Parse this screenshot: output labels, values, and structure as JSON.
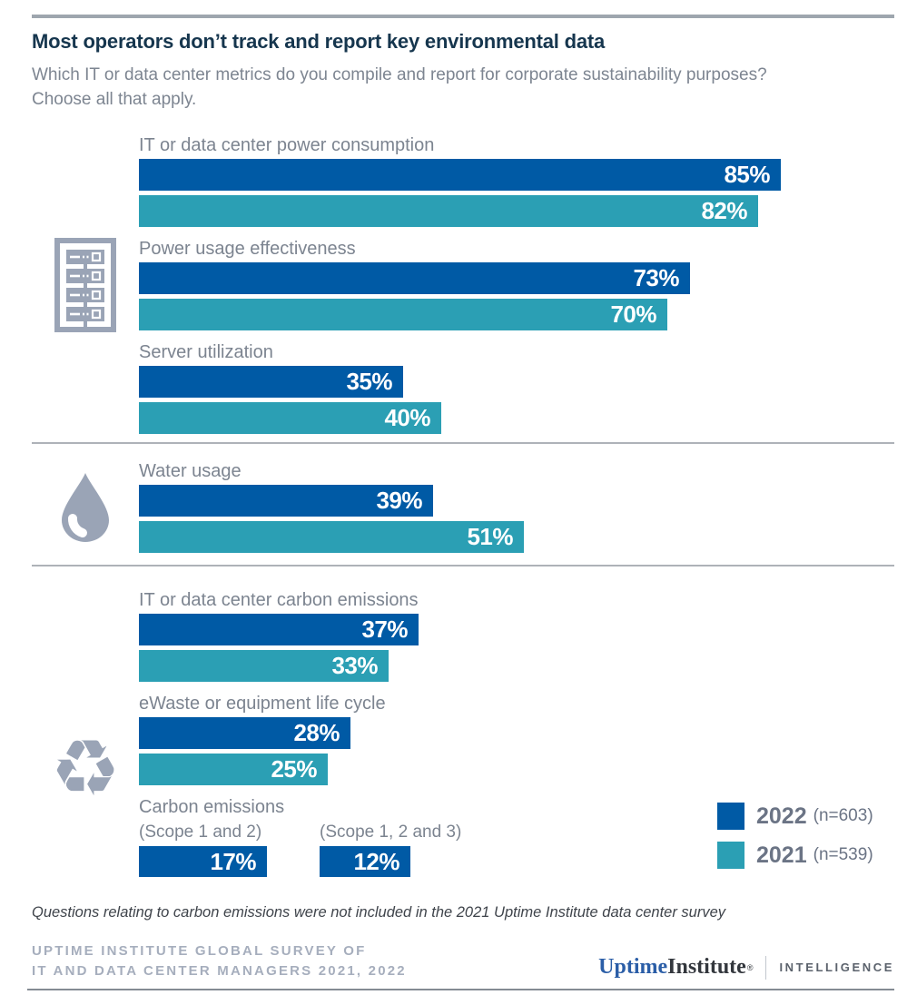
{
  "header": {
    "title": "Most operators don’t track and report key environmental data",
    "subtitle_lines": [
      "Which IT or data center metrics do you compile and report for corporate sustainability purposes?",
      "Choose all that apply."
    ]
  },
  "chart_data": {
    "type": "bar",
    "orientation": "horizontal",
    "value_unit": "%",
    "axis": {
      "min": 0,
      "max": 100,
      "gridlines": false,
      "tick_labels": "values shown as data labels on bars"
    },
    "series": [
      {
        "name": "2022",
        "n_label": "(n=603)",
        "color": "#005AA5"
      },
      {
        "name": "2021",
        "n_label": "(n=539)",
        "color": "#2B9FB4"
      }
    ],
    "sections": [
      {
        "icon": "server-rack-icon",
        "groups": [
          {
            "category": "IT or data center power consumption",
            "values": [
              85,
              82
            ]
          },
          {
            "category": "Power usage effectiveness",
            "values": [
              73,
              70
            ]
          },
          {
            "category": "Server utilization",
            "values": [
              35,
              40
            ]
          }
        ]
      },
      {
        "icon": "water-drop-icon",
        "groups": [
          {
            "category": "Water usage",
            "values": [
              39,
              51
            ]
          }
        ]
      },
      {
        "icon": "recycle-icon",
        "groups": [
          {
            "category": "IT or data center carbon emissions",
            "values": [
              37,
              33
            ]
          },
          {
            "category": "eWaste or equipment life cycle",
            "values": [
              28,
              25
            ]
          }
        ],
        "scope_group": {
          "category": "Carbon emissions",
          "bars": [
            {
              "label": "(Scope 1 and 2)",
              "series": "2022",
              "value": 17
            },
            {
              "label": "(Scope 1, 2 and 3)",
              "series": "2022",
              "value": 12
            }
          ]
        }
      }
    ]
  },
  "legend": [
    {
      "year": "2022",
      "n": "(n=603)",
      "color": "#005AA5"
    },
    {
      "year": "2021",
      "n": "(n=539)",
      "color": "#2B9FB4"
    }
  ],
  "footnote": "Questions relating to carbon emissions were not included in the 2021 Uptime Institute data center survey",
  "footer": {
    "survey_lines": [
      "UPTIME INSTITUTE GLOBAL SURVEY OF",
      "IT AND DATA CENTER MANAGERS 2021, 2022"
    ],
    "logo": {
      "word1": "Uptime",
      "word2": "Institute",
      "reg": "®",
      "unit": "INTELLIGENCE"
    }
  },
  "icons": {
    "recycle_glyph": "♻",
    "icon_color": "#9AA4B6"
  },
  "colors": {
    "bar_2022": "#005AA5",
    "bar_2021": "#2B9FB4",
    "title": "#16364E",
    "label_gray": "#7C8490",
    "icon_gray": "#9AA4B6",
    "divider": "#AEB2B8",
    "footer_gray": "#A6AEBD",
    "logo_blue": "#2B5EA7"
  }
}
